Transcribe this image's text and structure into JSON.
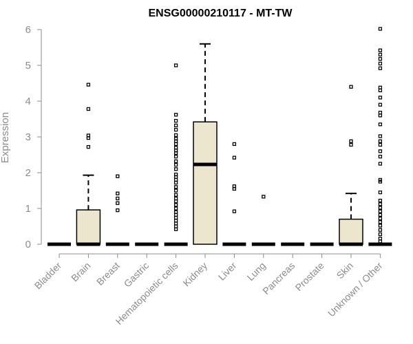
{
  "chart_data": {
    "type": "boxplot",
    "title": "ENSG00000210117 - MT-TW",
    "xlabel": "",
    "ylabel": "Expression",
    "ylim": [
      0,
      6
    ],
    "yticks": [
      "0",
      "1",
      "2",
      "3",
      "4",
      "5",
      "6"
    ],
    "box_fill": "#ede6cf",
    "categories": [
      "Bladder",
      "Brain",
      "Breast",
      "Gastric",
      "Hematopoietic cells",
      "Kidney",
      "Liver",
      "Lung",
      "Pancreas",
      "Prostate",
      "Skin",
      "Unknown / Other"
    ],
    "boxes": [
      {
        "q1": 0,
        "median": 0,
        "q3": 0,
        "whisker_low": 0,
        "whisker_high": 0,
        "outliers": []
      },
      {
        "q1": 0,
        "median": 0,
        "q3": 0.96,
        "whisker_low": 0,
        "whisker_high": 1.93,
        "outliers": [
          2.72,
          2.97,
          3.04,
          3.78,
          4.46
        ]
      },
      {
        "q1": 0,
        "median": 0,
        "q3": 0,
        "whisker_low": 0,
        "whisker_high": 0,
        "outliers": [
          0.95,
          1.15,
          1.28,
          1.42,
          1.9
        ]
      },
      {
        "q1": 0,
        "median": 0,
        "q3": 0,
        "whisker_low": 0,
        "whisker_high": 0,
        "outliers": []
      },
      {
        "q1": 0,
        "median": 0,
        "q3": 0,
        "whisker_low": 0,
        "whisker_high": 0,
        "outliers": [
          0.42,
          0.5,
          0.58,
          0.66,
          0.74,
          0.82,
          0.9,
          1.0,
          1.1,
          1.2,
          1.28,
          1.38,
          1.5,
          1.6,
          1.72,
          1.8,
          1.88,
          1.95,
          2.1,
          2.22,
          2.32,
          2.45,
          2.55,
          2.62,
          2.7,
          2.8,
          2.88,
          2.95,
          3.05,
          3.2,
          3.32,
          3.45,
          3.62,
          5.0
        ]
      },
      {
        "q1": 0,
        "median": 2.23,
        "q3": 3.42,
        "whisker_low": 0,
        "whisker_high": 5.6,
        "outliers": []
      },
      {
        "q1": 0,
        "median": 0,
        "q3": 0,
        "whisker_low": 0,
        "whisker_high": 0,
        "outliers": [
          0.92,
          1.55,
          1.62,
          2.42,
          2.8
        ]
      },
      {
        "q1": 0,
        "median": 0,
        "q3": 0,
        "whisker_low": 0,
        "whisker_high": 0,
        "outliers": [
          1.33
        ]
      },
      {
        "q1": 0,
        "median": 0,
        "q3": 0,
        "whisker_low": 0,
        "whisker_high": 0,
        "outliers": []
      },
      {
        "q1": 0,
        "median": 0,
        "q3": 0,
        "whisker_low": 0,
        "whisker_high": 0,
        "outliers": []
      },
      {
        "q1": 0,
        "median": 0,
        "q3": 0.7,
        "whisker_low": 0,
        "whisker_high": 1.42,
        "outliers": [
          2.78,
          2.88,
          4.4
        ]
      },
      {
        "q1": 0,
        "median": 0,
        "q3": 0,
        "whisker_low": 0,
        "whisker_high": 0,
        "outliers": [
          0.08,
          0.16,
          0.28,
          0.4,
          0.52,
          0.62,
          0.72,
          0.82,
          0.92,
          1.02,
          1.12,
          1.22,
          1.45,
          1.75,
          1.8,
          2.25,
          2.45,
          2.6,
          2.78,
          2.88,
          3.02,
          3.35,
          3.6,
          3.68,
          3.9,
          4.1,
          4.3,
          4.38,
          4.92,
          5.05,
          5.18,
          5.3,
          5.42,
          6.02
        ]
      }
    ]
  }
}
